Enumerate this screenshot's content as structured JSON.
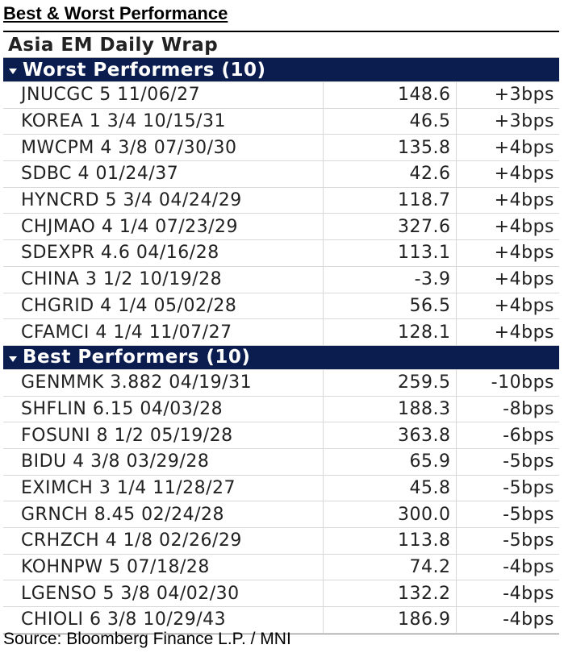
{
  "header": {
    "title": "Best & Worst Performance"
  },
  "table": {
    "title": "Asia EM Daily Wrap",
    "sections": [
      {
        "title": "Worst Performers (10)",
        "rows": [
          [
            "JNUCGC 5 11/06/27",
            "148.6",
            "+3bps"
          ],
          [
            "KOREA 1 3/4 10/15/31",
            "46.5",
            "+3bps"
          ],
          [
            "MWCPM 4 3/8 07/30/30",
            "135.8",
            "+4bps"
          ],
          [
            "SDBC 4 01/24/37",
            "42.6",
            "+4bps"
          ],
          [
            "HYNCRD 5 3/4 04/24/29",
            "118.7",
            "+4bps"
          ],
          [
            "CHJMAO 4 1/4 07/23/29",
            "327.6",
            "+4bps"
          ],
          [
            "SDEXPR 4.6 04/16/28",
            "113.1",
            "+4bps"
          ],
          [
            "CHINA 3 1/2 10/19/28",
            "-3.9",
            "+4bps"
          ],
          [
            "CHGRID 4 1/4 05/02/28",
            "56.5",
            "+4bps"
          ],
          [
            "CFAMCI 4 1/4 11/07/27",
            "128.1",
            "+4bps"
          ]
        ]
      },
      {
        "title": "Best Performers (10)",
        "rows": [
          [
            "GENMMK 3.882 04/19/31",
            "259.5",
            "-10bps"
          ],
          [
            "SHFLIN 6.15 04/03/28",
            "188.3",
            "-8bps"
          ],
          [
            "FOSUNI 8 1/2 05/19/28",
            "363.8",
            "-6bps"
          ],
          [
            "BIDU 4 3/8 03/29/28",
            "65.9",
            "-5bps"
          ],
          [
            "EXIMCH 3 1/4 11/28/27",
            "45.8",
            "-5bps"
          ],
          [
            "GRNCH 8.45 02/24/28",
            "300.0",
            "-5bps"
          ],
          [
            "CRHZCH 4 1/8 02/26/29",
            "113.8",
            "-5bps"
          ],
          [
            "KOHNPW 5 07/18/28",
            "74.2",
            "-4bps"
          ],
          [
            "LGENSO 5 3/8 04/02/30",
            "132.2",
            "-4bps"
          ],
          [
            "CHIOLI 6 3/8 10/29/43",
            "186.9",
            "-4bps"
          ]
        ]
      }
    ]
  },
  "footer": {
    "source": "Source: Bloomberg Finance L.P. / MNI"
  }
}
